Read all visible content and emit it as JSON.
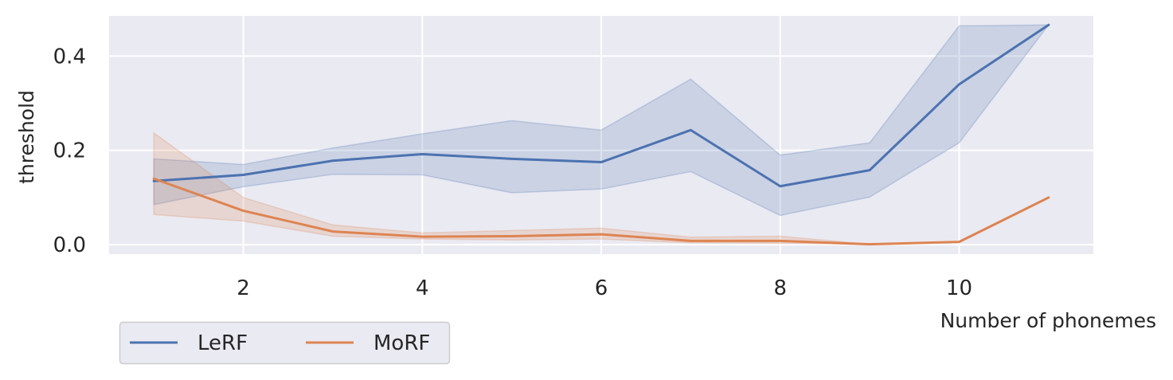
{
  "chart_data": {
    "type": "line",
    "title": "",
    "xlabel": "Number of phonemes",
    "ylabel": "threshold",
    "xlim": [
      0.5,
      11.5
    ],
    "ylim": [
      -0.02,
      0.485
    ],
    "xticks": [
      2,
      4,
      6,
      8,
      10
    ],
    "yticks": [
      0.0,
      0.2,
      0.4
    ],
    "xtick_labels": [
      "2",
      "4",
      "6",
      "8",
      "10"
    ],
    "ytick_labels": [
      "0.0",
      "0.2",
      "0.4"
    ],
    "grid": true,
    "legend_position": "below-left",
    "legend_ncol": 2,
    "series": [
      {
        "name": "LeRF",
        "color": "#4c72b0",
        "x": [
          1,
          2,
          3,
          4,
          5,
          6,
          7,
          8,
          9,
          10,
          11
        ],
        "y": [
          0.135,
          0.148,
          0.178,
          0.192,
          0.182,
          0.175,
          0.243,
          0.124,
          0.158,
          0.34,
          0.466
        ],
        "ci_lower": [
          0.085,
          0.123,
          0.149,
          0.148,
          0.11,
          0.118,
          0.155,
          0.062,
          0.101,
          0.216,
          0.466
        ],
        "ci_upper": [
          0.182,
          0.17,
          0.205,
          0.235,
          0.263,
          0.243,
          0.351,
          0.19,
          0.216,
          0.464,
          0.466
        ]
      },
      {
        "name": "MoRF",
        "color": "#dd8452",
        "x": [
          1,
          2,
          3,
          4,
          5,
          6,
          7,
          8,
          9,
          10,
          11
        ],
        "y": [
          0.14,
          0.072,
          0.028,
          0.017,
          0.018,
          0.022,
          0.008,
          0.008,
          0.001,
          0.006,
          0.1
        ],
        "ci_lower": [
          0.064,
          0.05,
          0.018,
          0.012,
          0.01,
          0.012,
          0.004,
          0.003,
          0.001,
          0.006,
          0.1
        ],
        "ci_upper": [
          0.237,
          0.1,
          0.042,
          0.025,
          0.03,
          0.035,
          0.016,
          0.018,
          0.001,
          0.006,
          0.1
        ]
      }
    ]
  }
}
